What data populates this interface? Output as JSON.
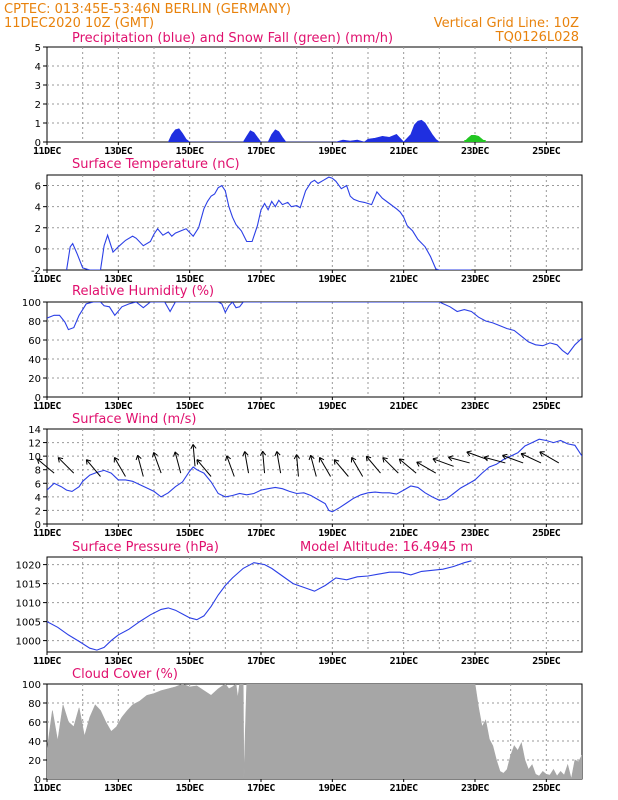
{
  "header": {
    "line1_left": "CPTEC:  013:45E-53:46N  BERLIN (GERMANY)",
    "line2_left": "11DEC2020 10Z (GMT)",
    "line2_right": "Vertical Grid Line: 10Z",
    "code": "TQ0126L028"
  },
  "colors": {
    "header": "#e8820c",
    "panel_title": "#e0106e",
    "precipitation": "#1f2fe0",
    "snowfall": "#22c622",
    "line": "#2b3fe6",
    "cloud": "#a6a6a6"
  },
  "chart_data": [
    {
      "id": "precip",
      "type": "area",
      "title": "Precipitation (blue) and Snow Fall (green) (mm/h)",
      "x_unit": "days since 11DEC 00Z",
      "xlim": [
        0,
        15
      ],
      "ylim": [
        0,
        5
      ],
      "yticks": [
        0,
        1,
        2,
        3,
        4,
        5
      ],
      "xticks": [
        "11DEC",
        "13DEC",
        "15DEC",
        "17DEC",
        "19DEC",
        "21DEC",
        "23DEC",
        "25DEC"
      ],
      "series": [
        {
          "name": "Precipitation",
          "x": [
            3.4,
            3.5,
            3.6,
            3.7,
            3.8,
            3.9,
            4.0,
            5.5,
            5.6,
            5.7,
            5.8,
            5.9,
            6.0,
            6.2,
            6.3,
            6.4,
            6.5,
            6.6,
            6.7,
            8.1,
            8.3,
            8.5,
            8.7,
            8.9,
            9.0,
            9.2,
            9.4,
            9.6,
            9.8,
            9.9,
            10.0,
            10.2,
            10.3,
            10.4,
            10.5,
            10.6,
            10.7,
            10.8,
            10.9,
            11.0
          ],
          "values": [
            0,
            0.4,
            0.65,
            0.7,
            0.45,
            0.15,
            0,
            0,
            0.3,
            0.6,
            0.5,
            0.25,
            0,
            0,
            0.4,
            0.65,
            0.55,
            0.25,
            0,
            0,
            0.1,
            0.05,
            0.1,
            0,
            0.15,
            0.2,
            0.3,
            0.25,
            0.4,
            0.2,
            0,
            0.4,
            0.9,
            1.1,
            1.15,
            1.0,
            0.7,
            0.4,
            0.15,
            0
          ]
        },
        {
          "name": "Snow Fall",
          "x": [
            11.7,
            11.8,
            11.9,
            12.0,
            12.1,
            12.2,
            12.3
          ],
          "values": [
            0,
            0.2,
            0.35,
            0.35,
            0.3,
            0.15,
            0
          ]
        }
      ]
    },
    {
      "id": "temp",
      "type": "line",
      "title": "Surface Temperature (nC)",
      "x_unit": "days since 11DEC 00Z",
      "xlim": [
        0,
        15
      ],
      "ylim": [
        -2,
        7
      ],
      "yticks": [
        -2,
        0,
        2,
        4,
        6
      ],
      "xticks": [
        "11DEC",
        "13DEC",
        "15DEC",
        "17DEC",
        "19DEC",
        "21DEC",
        "23DEC",
        "25DEC"
      ],
      "series": [
        {
          "name": "Temperature",
          "x": [
            0.55,
            0.65,
            0.72,
            0.85,
            1.0,
            1.2,
            1.5,
            1.6,
            1.7,
            1.85,
            2.0,
            2.2,
            2.4,
            2.5,
            2.7,
            2.9,
            3.0,
            3.1,
            3.25,
            3.4,
            3.5,
            3.6,
            3.75,
            3.9,
            4.1,
            4.25,
            4.4,
            4.5,
            4.6,
            4.7,
            4.8,
            4.9,
            5.0,
            5.1,
            5.2,
            5.3,
            5.45,
            5.6,
            5.75,
            5.9,
            6.0,
            6.1,
            6.2,
            6.3,
            6.4,
            6.5,
            6.6,
            6.75,
            6.85,
            7.0,
            7.1,
            7.25,
            7.4,
            7.5,
            7.6,
            7.75,
            7.9,
            8.0,
            8.1,
            8.25,
            8.4,
            8.5,
            8.6,
            8.75,
            8.9,
            9.0,
            9.1,
            9.25,
            9.4,
            9.6,
            9.8,
            9.9,
            10.0,
            10.1,
            10.25,
            10.4,
            10.6,
            10.75,
            10.9,
            11.0,
            11.1,
            11.25,
            11.4,
            11.6,
            11.75,
            11.9
          ],
          "values": [
            -2,
            0.2,
            0.5,
            -0.5,
            -1.8,
            -2,
            -2,
            0.3,
            1.3,
            -0.3,
            0.2,
            0.8,
            1.2,
            1.0,
            0.3,
            0.7,
            1.4,
            1.9,
            1.3,
            1.6,
            1.2,
            1.5,
            1.7,
            1.9,
            1.2,
            2.0,
            3.8,
            4.5,
            5.0,
            5.2,
            5.8,
            6.0,
            5.5,
            4.0,
            3.0,
            2.3,
            1.7,
            0.7,
            0.7,
            2.2,
            3.7,
            4.3,
            3.7,
            4.5,
            4.0,
            4.6,
            4.2,
            4.4,
            4.0,
            4.1,
            3.9,
            5.5,
            6.3,
            6.5,
            6.2,
            6.5,
            6.8,
            6.7,
            6.4,
            5.7,
            6.0,
            5.0,
            4.7,
            4.5,
            4.4,
            4.3,
            4.2,
            5.4,
            4.8,
            4.3,
            3.8,
            3.5,
            3.0,
            2.2,
            1.7,
            0.9,
            0.2,
            -0.7,
            -1.9,
            -2,
            -2,
            -2,
            -2,
            -2,
            -2,
            -2
          ]
        }
      ]
    },
    {
      "id": "rh",
      "type": "line",
      "title": "Relative Humidity (%)",
      "x_unit": "days since 11DEC 00Z",
      "xlim": [
        0,
        15
      ],
      "ylim": [
        0,
        100
      ],
      "yticks": [
        0,
        20,
        40,
        60,
        80,
        100
      ],
      "xticks": [
        "11DEC",
        "13DEC",
        "15DEC",
        "17DEC",
        "19DEC",
        "21DEC",
        "23DEC",
        "25DEC"
      ],
      "series": [
        {
          "name": "Relative Humidity",
          "x": [
            0.0,
            0.2,
            0.35,
            0.5,
            0.6,
            0.75,
            0.9,
            1.0,
            1.1,
            1.3,
            1.5,
            1.6,
            1.75,
            1.9,
            2.1,
            2.3,
            2.5,
            2.7,
            2.9,
            3.1,
            3.3,
            3.45,
            3.6,
            3.8,
            3.95,
            4.1,
            4.3,
            4.45,
            4.6,
            4.8,
            4.9,
            5.0,
            5.1,
            5.2,
            5.3,
            5.4,
            5.5,
            5.6,
            5.7,
            6.0,
            6.3,
            6.6,
            7.0,
            7.5,
            8.0,
            8.5,
            9.0,
            9.5,
            10.0,
            10.5,
            11.0,
            11.3,
            11.5,
            11.7,
            11.9,
            12.1,
            12.3,
            12.5,
            12.7,
            12.9,
            13.1,
            13.3,
            13.5,
            13.7,
            13.9,
            14.1,
            14.3,
            14.45,
            14.6,
            14.8,
            15.0
          ],
          "values": [
            83,
            86,
            86,
            79,
            71,
            73,
            86,
            92,
            98,
            100,
            100,
            96,
            95,
            86,
            95,
            98,
            100,
            94,
            100,
            100,
            100,
            90,
            100,
            100,
            100,
            100,
            100,
            100,
            100,
            100,
            98,
            89,
            96,
            100,
            94,
            95,
            100,
            100,
            100,
            100,
            100,
            100,
            100,
            100,
            100,
            100,
            100,
            100,
            100,
            100,
            100,
            95,
            90,
            92,
            90,
            84,
            80,
            78,
            75,
            72,
            70,
            64,
            58,
            55,
            54,
            57,
            55,
            49,
            45,
            55,
            62
          ]
        }
      ]
    },
    {
      "id": "wind",
      "type": "line",
      "title": "Surface Wind (m/s)",
      "x_unit": "days since 11DEC 00Z",
      "xlim": [
        0,
        15
      ],
      "ylim": [
        0,
        14
      ],
      "yticks": [
        0,
        2,
        4,
        6,
        8,
        10,
        12,
        14
      ],
      "xticks": [
        "11DEC",
        "13DEC",
        "15DEC",
        "17DEC",
        "19DEC",
        "21DEC",
        "23DEC",
        "25DEC"
      ],
      "series": [
        {
          "name": "Wind Speed",
          "x": [
            0.0,
            0.2,
            0.4,
            0.55,
            0.7,
            0.9,
            1.0,
            1.2,
            1.4,
            1.6,
            1.8,
            2.0,
            2.2,
            2.4,
            2.6,
            2.8,
            3.0,
            3.2,
            3.4,
            3.6,
            3.8,
            4.0,
            4.1,
            4.2,
            4.4,
            4.6,
            4.8,
            5.0,
            5.2,
            5.4,
            5.6,
            5.8,
            6.0,
            6.2,
            6.4,
            6.6,
            6.8,
            7.0,
            7.2,
            7.4,
            7.6,
            7.8,
            7.9,
            8.0,
            8.2,
            8.4,
            8.6,
            8.8,
            9.0,
            9.2,
            9.4,
            9.6,
            9.8,
            10.0,
            10.2,
            10.4,
            10.6,
            10.8,
            11.0,
            11.2,
            11.4,
            11.6,
            11.8,
            12.0,
            12.2,
            12.4,
            12.6,
            12.8,
            13.0,
            13.2,
            13.4,
            13.6,
            13.8,
            14.0,
            14.2,
            14.4,
            14.6,
            14.8,
            15.0
          ],
          "values": [
            5.0,
            6.0,
            5.5,
            5.0,
            4.8,
            5.5,
            6.3,
            7.2,
            7.6,
            7.9,
            7.5,
            6.5,
            6.5,
            6.3,
            5.8,
            5.3,
            4.8,
            4.0,
            4.6,
            5.5,
            6.2,
            7.8,
            8.4,
            8.0,
            7.5,
            6.2,
            4.5,
            4.0,
            4.2,
            4.5,
            4.3,
            4.5,
            5.0,
            5.2,
            5.4,
            5.2,
            4.8,
            4.5,
            4.6,
            4.2,
            3.6,
            3.0,
            2.0,
            1.8,
            2.4,
            3.1,
            3.8,
            4.3,
            4.6,
            4.7,
            4.6,
            4.6,
            4.4,
            5.0,
            5.6,
            5.4,
            4.6,
            4.0,
            3.5,
            3.7,
            4.5,
            5.3,
            5.9,
            6.5,
            7.5,
            8.4,
            8.8,
            9.5,
            10.0,
            10.5,
            11.5,
            12.0,
            12.5,
            12.3,
            12.0,
            12.3,
            11.8,
            11.6,
            10.0
          ]
        }
      ],
      "wind_barbs": {
        "x": [
          0.2,
          0.75,
          1.5,
          2.2,
          2.7,
          3.2,
          3.75,
          4.15,
          4.6,
          5.25,
          5.65,
          6.1,
          6.55,
          7.05,
          7.55,
          7.95,
          8.45,
          8.85,
          9.35,
          9.85,
          10.35,
          10.9,
          11.4,
          11.85,
          12.35,
          12.85,
          13.35,
          13.85,
          14.35
        ],
        "dir_deg": [
          310,
          315,
          320,
          330,
          345,
          340,
          345,
          355,
          320,
          340,
          350,
          355,
          350,
          355,
          345,
          330,
          320,
          330,
          320,
          315,
          310,
          300,
          290,
          285,
          290,
          285,
          290,
          295,
          300
        ],
        "speed": [
          7.5,
          7.5,
          7,
          7,
          7,
          7.5,
          7.5,
          8.5,
          7,
          7,
          7.5,
          7.5,
          7.5,
          7,
          7,
          7,
          7,
          7,
          7.5,
          7.5,
          7.5,
          7.5,
          8.5,
          9,
          9.5,
          9,
          9,
          9,
          9
        ]
      }
    },
    {
      "id": "pressure",
      "type": "line",
      "title": "Surface Pressure (hPa)",
      "annotation": "Model Altitude: 16.4945 m",
      "x_unit": "days since 11DEC 00Z",
      "xlim": [
        0,
        15
      ],
      "ylim": [
        997,
        1022
      ],
      "yticks": [
        1000,
        1005,
        1010,
        1015,
        1020
      ],
      "xticks": [
        "11DEC",
        "13DEC",
        "15DEC",
        "17DEC",
        "19DEC",
        "21DEC",
        "23DEC",
        "25DEC"
      ],
      "series": [
        {
          "name": "Pressure",
          "x": [
            0.0,
            0.3,
            0.6,
            0.9,
            1.2,
            1.4,
            1.6,
            1.8,
            2.0,
            2.3,
            2.6,
            2.9,
            3.2,
            3.4,
            3.6,
            3.8,
            4.0,
            4.2,
            4.4,
            4.6,
            4.8,
            5.0,
            5.2,
            5.5,
            5.8,
            6.1,
            6.3,
            6.6,
            6.9,
            7.2,
            7.5,
            7.8,
            8.1,
            8.4,
            8.7,
            9.0,
            9.3,
            9.6,
            9.9,
            10.2,
            10.5,
            10.8,
            11.1,
            11.4,
            11.7,
            11.9
          ],
          "values": [
            1005.0,
            1003.5,
            1001.5,
            999.8,
            998.0,
            997.5,
            998.2,
            1000.0,
            1001.5,
            1003.0,
            1005.0,
            1006.8,
            1008.2,
            1008.6,
            1008.0,
            1007.0,
            1006.0,
            1005.5,
            1006.5,
            1009.0,
            1012.0,
            1014.5,
            1016.5,
            1019.0,
            1020.5,
            1020.0,
            1019.0,
            1017.0,
            1015.0,
            1014.0,
            1013.0,
            1014.5,
            1016.5,
            1016.0,
            1016.8,
            1017.0,
            1017.5,
            1018.0,
            1018.0,
            1017.3,
            1018.2,
            1018.5,
            1018.8,
            1019.5,
            1020.5,
            1021.0
          ]
        }
      ]
    },
    {
      "id": "cloud",
      "type": "area",
      "title": "Cloud Cover (%)",
      "x_unit": "days since 11DEC 00Z",
      "xlim": [
        0,
        15
      ],
      "ylim": [
        0,
        100
      ],
      "yticks": [
        0,
        20,
        40,
        60,
        80,
        100
      ],
      "xticks": [
        "11DEC",
        "13DEC",
        "15DEC",
        "17DEC",
        "19DEC",
        "21DEC",
        "23DEC",
        "25DEC"
      ],
      "series": [
        {
          "name": "Cloud Cover",
          "x": [
            0.0,
            0.15,
            0.3,
            0.45,
            0.6,
            0.75,
            0.9,
            1.05,
            1.2,
            1.35,
            1.5,
            1.65,
            1.8,
            1.95,
            2.1,
            2.25,
            2.4,
            2.6,
            2.8,
            3.0,
            3.2,
            3.4,
            3.6,
            3.8,
            4.0,
            4.2,
            4.4,
            4.6,
            4.8,
            5.0,
            5.1,
            5.2,
            5.3,
            5.35,
            5.4,
            5.5,
            5.52,
            5.6,
            6.0,
            7.0,
            8.0,
            9.0,
            10.0,
            11.0,
            12.0,
            12.1,
            12.2,
            12.3,
            12.4,
            12.5,
            12.6,
            12.7,
            12.8,
            12.9,
            13.0,
            13.1,
            13.2,
            13.3,
            13.4,
            13.5,
            13.6,
            13.7,
            13.8,
            13.9,
            14.0,
            14.1,
            14.2,
            14.3,
            14.4,
            14.5,
            14.6,
            14.7,
            14.8,
            14.9,
            15.0
          ],
          "values": [
            30,
            72,
            40,
            78,
            60,
            55,
            75,
            45,
            65,
            78,
            72,
            60,
            50,
            55,
            65,
            72,
            78,
            82,
            88,
            90,
            93,
            95,
            97,
            100,
            97,
            98,
            93,
            88,
            95,
            100,
            95,
            97,
            100,
            85,
            100,
            100,
            0,
            100,
            100,
            100,
            100,
            100,
            100,
            100,
            100,
            75,
            55,
            62,
            42,
            35,
            20,
            8,
            6,
            10,
            25,
            35,
            30,
            38,
            20,
            10,
            15,
            5,
            3,
            8,
            5,
            4,
            10,
            3,
            8,
            4,
            15,
            0,
            20,
            18,
            25
          ]
        }
      ]
    }
  ]
}
